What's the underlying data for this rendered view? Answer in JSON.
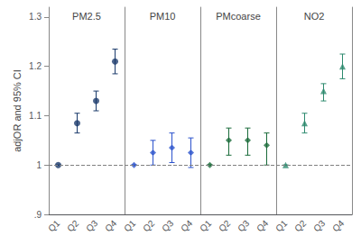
{
  "chart_data": [
    {
      "type": "scatter",
      "title": "PM2.5",
      "ylabel": "adjOR and 95% CI",
      "categories": [
        "Q1",
        "Q2",
        "Q3",
        "Q4"
      ],
      "values": [
        1.0,
        1.085,
        1.13,
        1.21
      ],
      "ci_low": [
        1.0,
        1.065,
        1.11,
        1.185
      ],
      "ci_high": [
        1.0,
        1.105,
        1.15,
        1.235
      ],
      "color": "#1a3a6b",
      "marker": "circle",
      "ylim": [
        0.9,
        1.32
      ],
      "yticks": [
        {
          "value": 0.9,
          "label": ".9"
        },
        1,
        1.1,
        1.2,
        1.3
      ],
      "grid": false,
      "hline": 1.0
    },
    {
      "type": "scatter",
      "title": "PM10",
      "categories": [
        "Q1",
        "Q2",
        "Q3",
        "Q4"
      ],
      "values": [
        1.0,
        1.025,
        1.035,
        1.025
      ],
      "ci_low": [
        1.0,
        1.0,
        1.005,
        0.995
      ],
      "ci_high": [
        1.0,
        1.05,
        1.065,
        1.055
      ],
      "color": "#2b52cc",
      "marker": "diamond",
      "ylim": [
        0.9,
        1.32
      ],
      "tick_labels": "x",
      "grid": false,
      "hline": 1.0
    },
    {
      "type": "scatter",
      "title": "PMcoarse",
      "categories": [
        "Q1",
        "Q2",
        "Q3",
        "Q4"
      ],
      "values": [
        1.0,
        1.05,
        1.05,
        1.04
      ],
      "ci_low": [
        1.0,
        1.02,
        1.02,
        1.0
      ],
      "ci_high": [
        1.0,
        1.075,
        1.075,
        1.065
      ],
      "color": "#1a6b3a",
      "marker": "diamond",
      "ylim": [
        0.9,
        1.32
      ],
      "tick_labels": "x",
      "grid": false,
      "hline": 1.0
    },
    {
      "type": "scatter",
      "title": "NO2",
      "categories": [
        "Q1",
        "Q2",
        "Q3",
        "Q4"
      ],
      "values": [
        1.0,
        1.085,
        1.15,
        1.2
      ],
      "ci_low": [
        1.0,
        1.065,
        1.13,
        1.175
      ],
      "ci_high": [
        1.0,
        1.105,
        1.165,
        1.225
      ],
      "color": "#2d8a6e",
      "marker": "triangle",
      "ylim": [
        0.9,
        1.32
      ],
      "tick_labels": "x",
      "grid": false,
      "hline": 1.0
    }
  ]
}
